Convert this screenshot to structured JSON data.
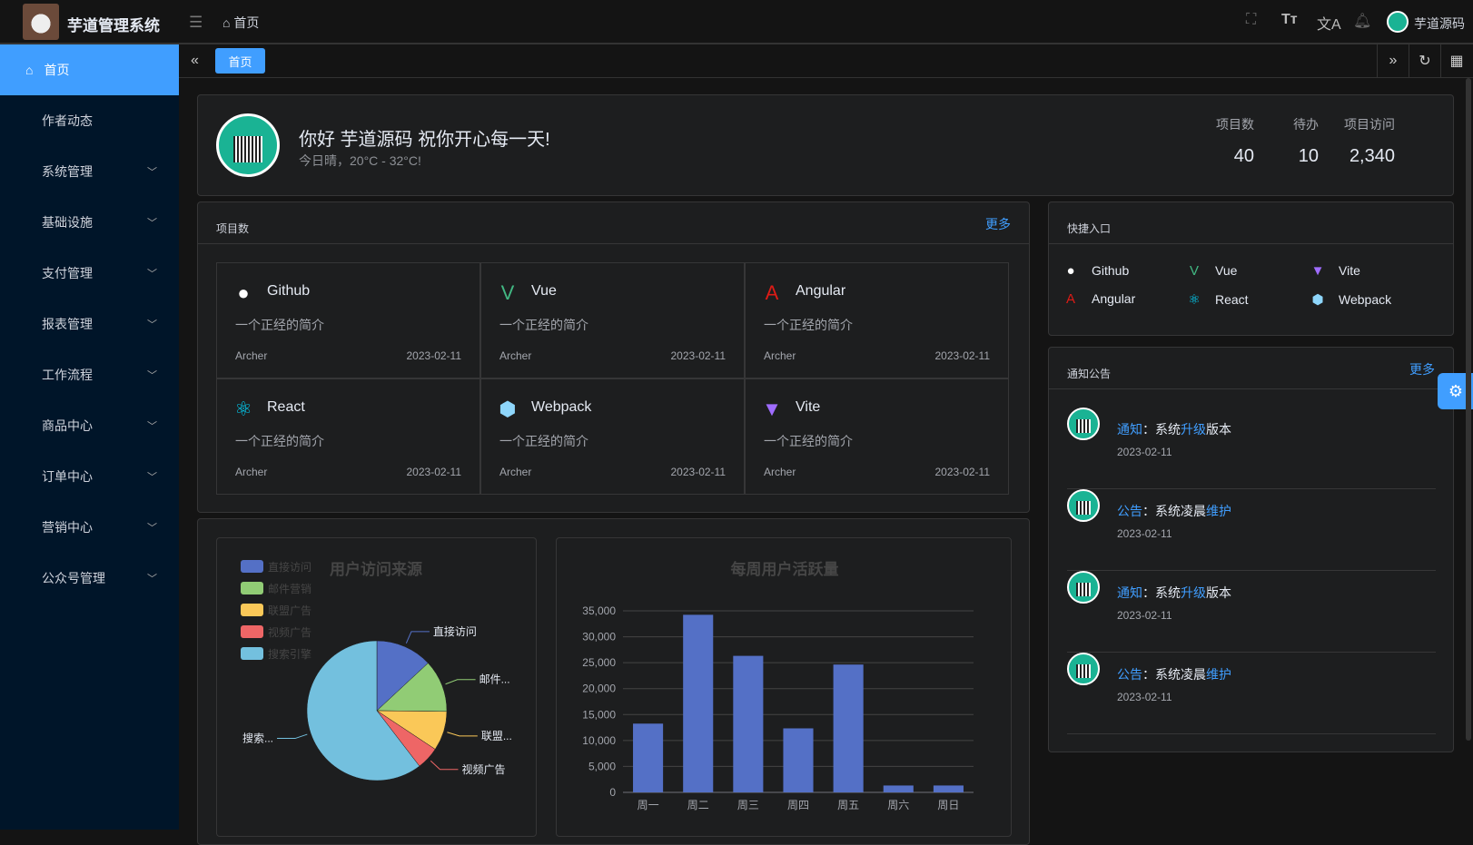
{
  "header": {
    "app_title": "芋道管理系统",
    "breadcrumb": "首页",
    "user_name": "芋道源码"
  },
  "sidebar": {
    "items": [
      {
        "label": "首页",
        "active": true
      },
      {
        "label": "作者动态"
      },
      {
        "label": "系统管理",
        "expandable": true
      },
      {
        "label": "基础设施",
        "expandable": true
      },
      {
        "label": "支付管理",
        "expandable": true
      },
      {
        "label": "报表管理",
        "expandable": true
      },
      {
        "label": "工作流程",
        "expandable": true
      },
      {
        "label": "商品中心",
        "expandable": true
      },
      {
        "label": "订单中心",
        "expandable": true
      },
      {
        "label": "营销中心",
        "expandable": true
      },
      {
        "label": "公众号管理",
        "expandable": true
      }
    ]
  },
  "tabs": [
    {
      "label": "首页",
      "active": true
    }
  ],
  "welcome": {
    "greeting": "你好 芋道源码 祝你开心每一天!",
    "weather": "今日晴，20°C - 32°C!",
    "stats": [
      {
        "label": "项目数",
        "value": "40"
      },
      {
        "label": "待办",
        "value": "10"
      },
      {
        "label": "项目访问",
        "value": "2,340"
      }
    ]
  },
  "projects": {
    "title": "项目数",
    "more": "更多",
    "items": [
      {
        "name": "Github",
        "icon": "github-icon",
        "color": "#ffffff",
        "desc": "一个正经的简介",
        "author": "Archer",
        "date": "2023-02-11"
      },
      {
        "name": "Vue",
        "icon": "vue-icon",
        "color": "#42b883",
        "desc": "一个正经的简介",
        "author": "Archer",
        "date": "2023-02-11"
      },
      {
        "name": "Angular",
        "icon": "angular-icon",
        "color": "#dd1b16",
        "desc": "一个正经的简介",
        "author": "Archer",
        "date": "2023-02-11"
      },
      {
        "name": "React",
        "icon": "react-icon",
        "color": "#00d8ff",
        "desc": "一个正经的简介",
        "author": "Archer",
        "date": "2023-02-11"
      },
      {
        "name": "Webpack",
        "icon": "webpack-icon",
        "color": "#8ed6fb",
        "desc": "一个正经的简介",
        "author": "Archer",
        "date": "2023-02-11"
      },
      {
        "name": "Vite",
        "icon": "vite-icon",
        "color": "#9f6cff",
        "desc": "一个正经的简介",
        "author": "Archer",
        "date": "2023-02-11"
      }
    ]
  },
  "shortcuts": {
    "title": "快捷入口",
    "items": [
      {
        "name": "Github",
        "icon": "github-icon",
        "color": "#ffffff"
      },
      {
        "name": "Vue",
        "icon": "vue-icon",
        "color": "#42b883"
      },
      {
        "name": "Vite",
        "icon": "vite-icon",
        "color": "#9f6cff"
      },
      {
        "name": "Angular",
        "icon": "angular-icon",
        "color": "#dd1b16"
      },
      {
        "name": "React",
        "icon": "react-icon",
        "color": "#00d8ff"
      },
      {
        "name": "Webpack",
        "icon": "webpack-icon",
        "color": "#8ed6fb"
      }
    ]
  },
  "notices": {
    "title": "通知公告",
    "more": "更多",
    "items": [
      {
        "type": "通知",
        "sep": "：",
        "parts": [
          "系统",
          "升级",
          "版本"
        ],
        "date": "2023-02-11"
      },
      {
        "type": "公告",
        "sep": "：",
        "parts": [
          "系统凌晨",
          "维护",
          ""
        ],
        "date": "2023-02-11"
      },
      {
        "type": "通知",
        "sep": "：",
        "parts": [
          "系统",
          "升级",
          "版本"
        ],
        "date": "2023-02-11"
      },
      {
        "type": "公告",
        "sep": "：",
        "parts": [
          "系统凌晨",
          "维护",
          ""
        ],
        "date": "2023-02-11"
      }
    ]
  },
  "chart_data": [
    {
      "type": "pie",
      "title": "用户访问来源",
      "legend_position": "top-left",
      "slices": [
        {
          "name": "直接访问",
          "value": 335,
          "label": "直接访问",
          "color": "#5470c6"
        },
        {
          "name": "邮件营销",
          "value": 310,
          "label": "邮件...",
          "color": "#91cc75"
        },
        {
          "name": "联盟广告",
          "value": 234,
          "label": "联盟...",
          "color": "#fac858"
        },
        {
          "name": "视频广告",
          "value": 135,
          "label": "视频广告",
          "color": "#ee6666"
        },
        {
          "name": "搜索引擎",
          "value": 1548,
          "label": "搜索...",
          "color": "#73c0de"
        }
      ]
    },
    {
      "type": "bar",
      "title": "每周用户活跃量",
      "categories": [
        "周一",
        "周二",
        "周三",
        "周四",
        "周五",
        "周六",
        "周日"
      ],
      "values": [
        13253,
        34235,
        26321,
        12340,
        24643,
        1322,
        1324
      ],
      "ylim": [
        0,
        35000
      ],
      "yticks": [
        "0",
        "5,000",
        "10,000",
        "15,000",
        "20,000",
        "25,000",
        "30,000",
        "35,000"
      ],
      "grid": true,
      "color": "#5470c6"
    }
  ]
}
